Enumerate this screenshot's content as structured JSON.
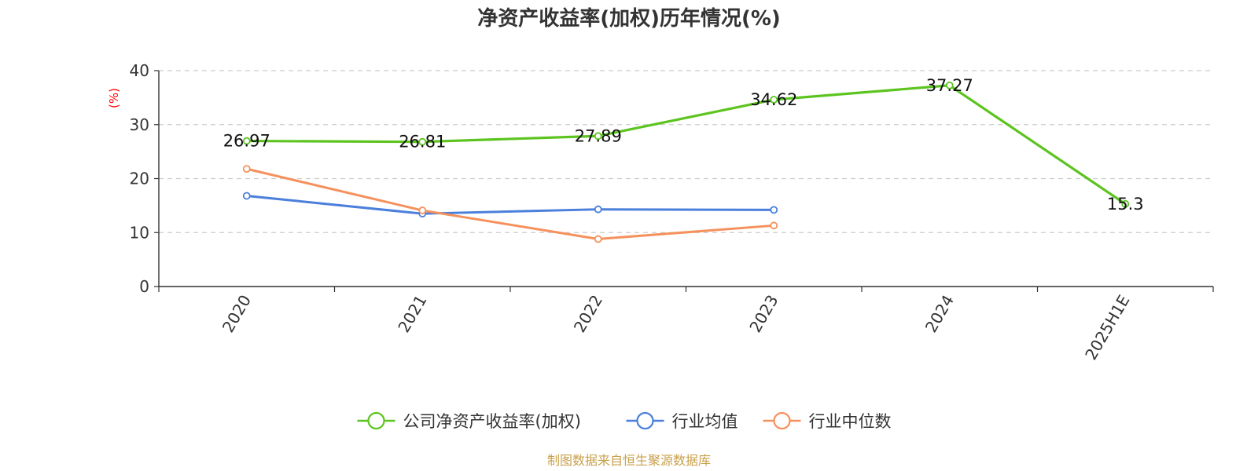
{
  "chart_data": {
    "type": "line",
    "title": "净资产收益率(加权)历年情况(%)",
    "ylabel": "(%)",
    "xlabel": "",
    "categories": [
      "2020",
      "2021",
      "2022",
      "2023",
      "2024",
      "2025H1E"
    ],
    "ylim": [
      0,
      40
    ],
    "yticks": [
      0,
      10,
      20,
      30,
      40
    ],
    "grid": true,
    "legend_position": "bottom",
    "series": [
      {
        "name": "公司净资产收益率(加权)",
        "color": "#5cc41f",
        "values": [
          26.97,
          26.81,
          27.89,
          34.62,
          37.27,
          15.3
        ],
        "labels": [
          "26.97",
          "26.81",
          "27.89",
          "34.62",
          "37.27",
          "15.3"
        ]
      },
      {
        "name": "行业均值",
        "color": "#4a7fdc",
        "values": [
          16.8,
          13.5,
          14.3,
          14.2,
          null,
          null
        ]
      },
      {
        "name": "行业中位数",
        "color": "#f5915c",
        "values": [
          21.8,
          14.1,
          8.8,
          11.3,
          null,
          null
        ]
      }
    ],
    "source": "制图数据来自恒生聚源数据库",
    "ylabel_color": "#ff0000",
    "source_color": "#c8a04a"
  }
}
